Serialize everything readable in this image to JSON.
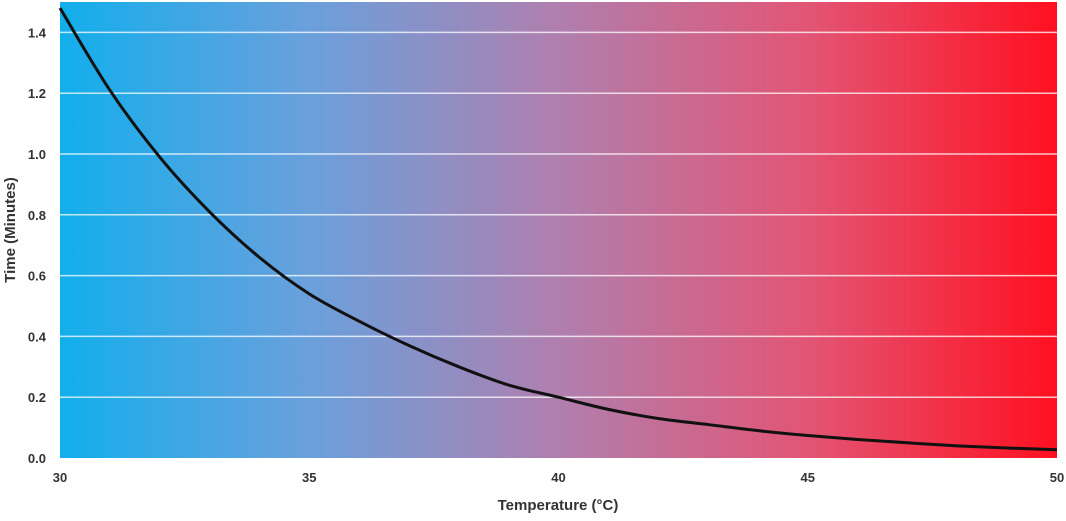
{
  "chart_data": {
    "type": "line",
    "title": "",
    "xlabel": "Temperature (°C)",
    "ylabel": "Time (Minutes)",
    "xlim": [
      30,
      50
    ],
    "ylim": [
      0,
      1.5
    ],
    "xticks": [
      "30",
      "35",
      "40",
      "45",
      "50"
    ],
    "yticks": [
      "0.0",
      "0.2",
      "0.4",
      "0.6",
      "0.8",
      "1.0",
      "1.2",
      "1.4"
    ],
    "grid": "horizontal",
    "background_gradient": [
      "#12aeec",
      "#6aa0dc",
      "#b07fae",
      "#e25575",
      "#ff1020"
    ],
    "line_color": "#111111",
    "series": [
      {
        "x": [
          30,
          31,
          32,
          33,
          34,
          35,
          36,
          37,
          38,
          39,
          40,
          41,
          42,
          43,
          44,
          45,
          46,
          47,
          48,
          49,
          50
        ],
        "y": [
          1.48,
          1.21,
          0.99,
          0.81,
          0.66,
          0.54,
          0.45,
          0.37,
          0.3,
          0.24,
          0.2,
          0.16,
          0.13,
          0.11,
          0.09,
          0.074,
          0.061,
          0.05,
          0.04,
          0.033,
          0.027
        ]
      }
    ]
  }
}
